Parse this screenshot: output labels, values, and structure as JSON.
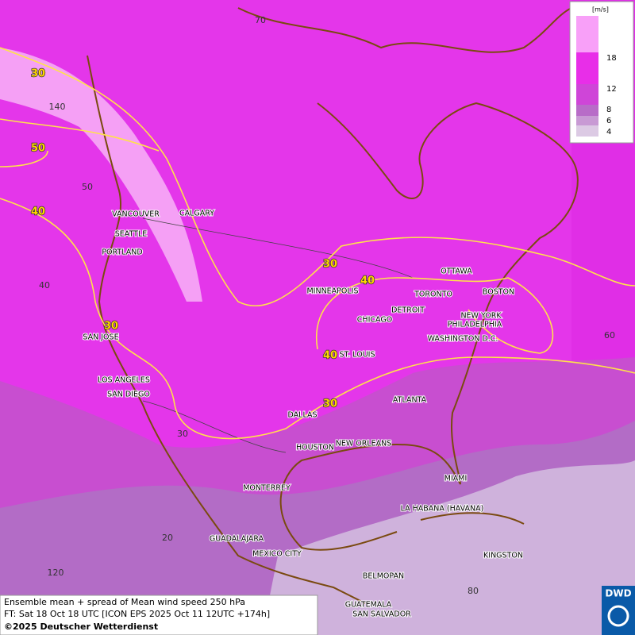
{
  "legend": {
    "unit": "[m/s]",
    "levels": [
      18,
      12,
      8,
      6,
      4
    ]
  },
  "contour_labels": [
    "30",
    "50",
    "40",
    "30",
    "30",
    "40",
    "40",
    "30"
  ],
  "grid_labels": [
    "70",
    "140",
    "50",
    "40",
    "30",
    "20",
    "120",
    "80",
    "60"
  ],
  "cities": [
    "VANCOUVER",
    "CALGARY",
    "SEATTLE",
    "PORTLAND",
    "MINNEAPOLIS",
    "OTTAWA",
    "TORONTO",
    "DETROIT",
    "BOSTON",
    "CHICAGO",
    "NEW YORK",
    "PHILADELPHIA",
    "WASHINGTON D.C.",
    "ST. LOUIS",
    "SAN JOSE",
    "LOS ANGELES",
    "SAN DIEGO",
    "DALLAS",
    "ATLANTA",
    "HOUSTON",
    "NEW ORLEANS",
    "MIAMI",
    "MONTERREY",
    "LA HABANA (HAVANA)",
    "GUADALAJARA",
    "MEXICO CITY",
    "KINGSTON",
    "BELMOPAN",
    "GUATEMALA",
    "SAN SALVADOR"
  ],
  "footer": {
    "line1": "Ensemble mean + spread of Mean wind speed 250 hPa",
    "line2": "FT: Sat 18 Oct 18 UTC [ICON EPS 2025 Oct 11 12UTC +174h]",
    "copyright": "©2025 Deutscher Wetterdienst"
  },
  "logo": "DWD"
}
